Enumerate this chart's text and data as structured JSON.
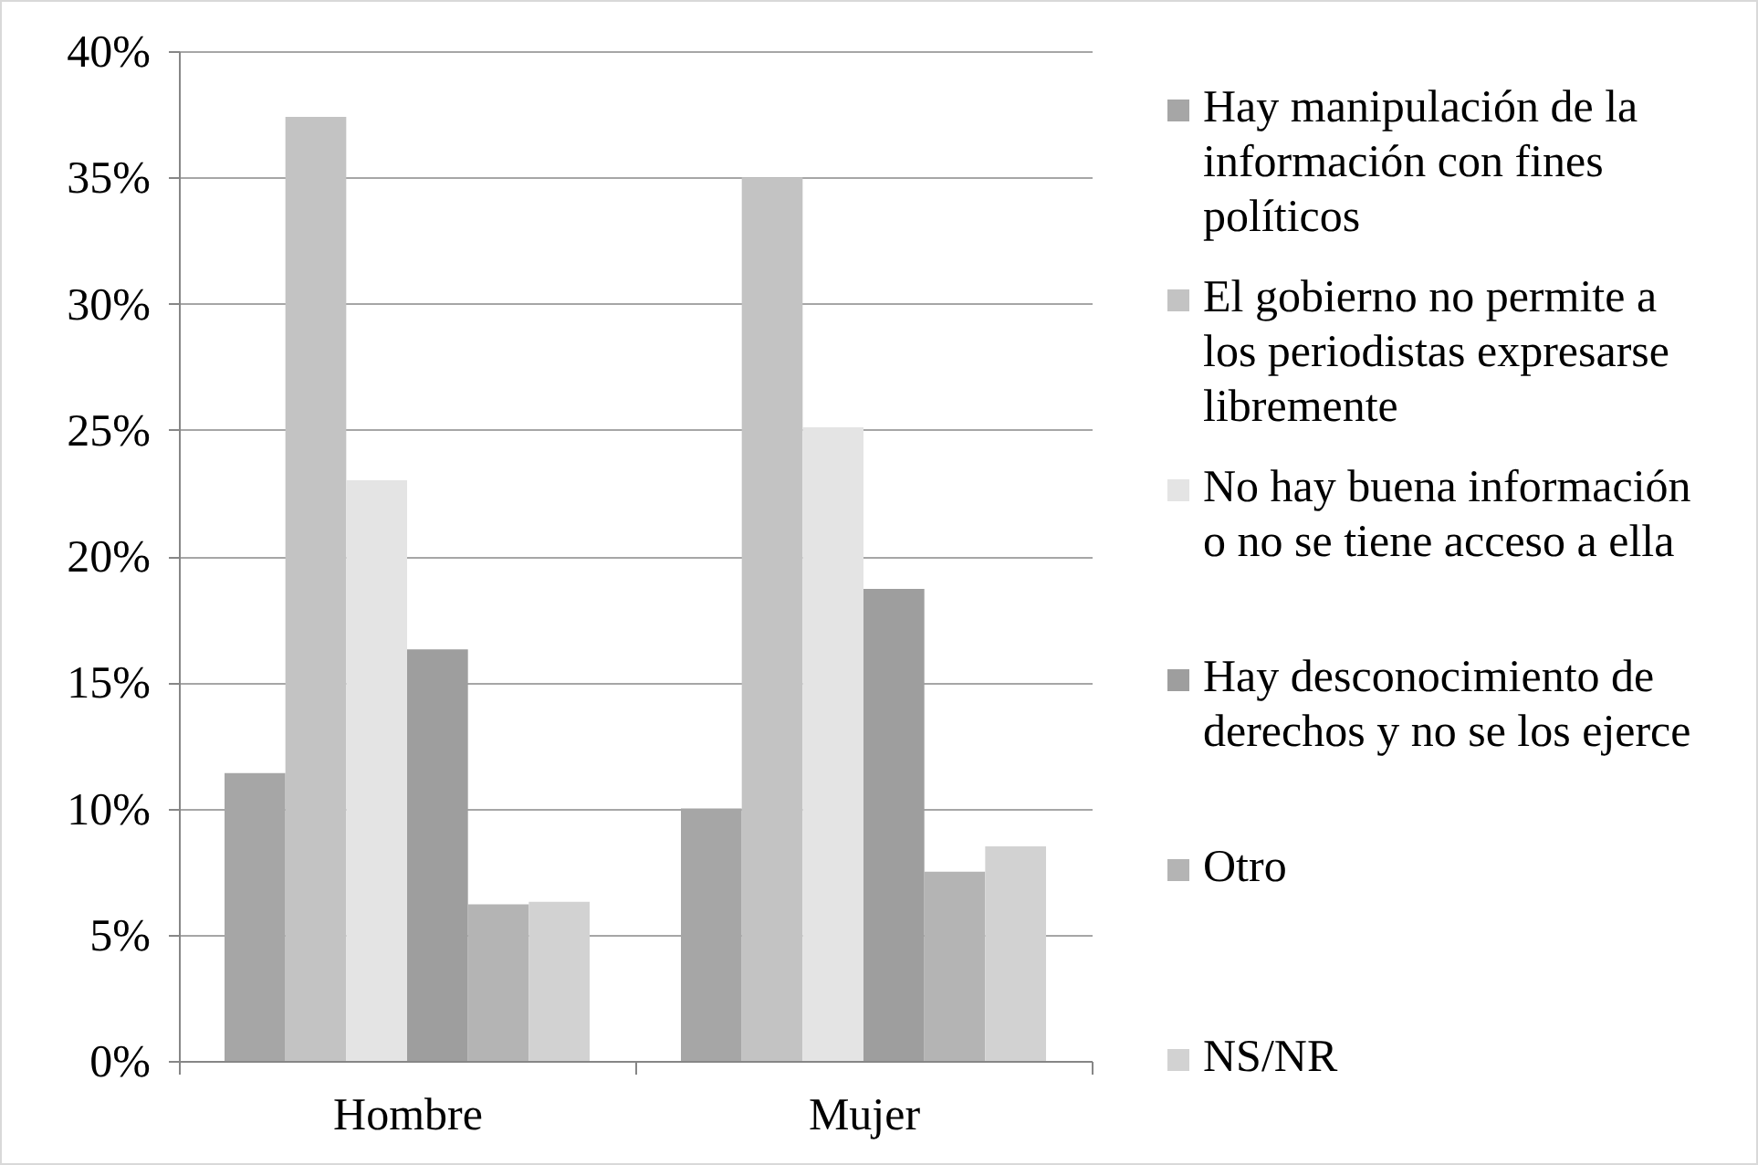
{
  "chart_data": {
    "type": "bar",
    "categories": [
      "Hombre",
      "Mujer"
    ],
    "series": [
      {
        "name": "Hay manipulación de la información  con fines políticos",
        "color": "#a6a6a6",
        "values": [
          11.4,
          10.0
        ]
      },
      {
        "name": "El gobierno no permite a los periodistas expresarse libremente",
        "color": "#c3c3c3",
        "values": [
          37.4,
          35.0
        ]
      },
      {
        "name": "No hay buena información o no se tiene acceso a ella",
        "color": "#e4e4e4",
        "values": [
          23.0,
          25.1
        ]
      },
      {
        "name": "Hay desconocimiento de derechos y no se los ejerce",
        "color": "#9e9e9e",
        "values": [
          16.3,
          18.7
        ]
      },
      {
        "name": "Otro",
        "color": "#b4b4b4",
        "values": [
          6.2,
          7.5
        ]
      },
      {
        "name": "NS/NR",
        "color": "#d2d2d2",
        "values": [
          6.3,
          8.5
        ]
      }
    ],
    "ylim": [
      0,
      40
    ],
    "yticks": [
      {
        "value": 0,
        "label": "0%"
      },
      {
        "value": 5,
        "label": "5%"
      },
      {
        "value": 10,
        "label": "10%"
      },
      {
        "value": 15,
        "label": "15%"
      },
      {
        "value": 20,
        "label": "20%"
      },
      {
        "value": 25,
        "label": "25%"
      },
      {
        "value": 30,
        "label": "30%"
      },
      {
        "value": 35,
        "label": "35%"
      },
      {
        "value": 40,
        "label": "40%"
      }
    ],
    "grid": "y",
    "legend": "right"
  }
}
